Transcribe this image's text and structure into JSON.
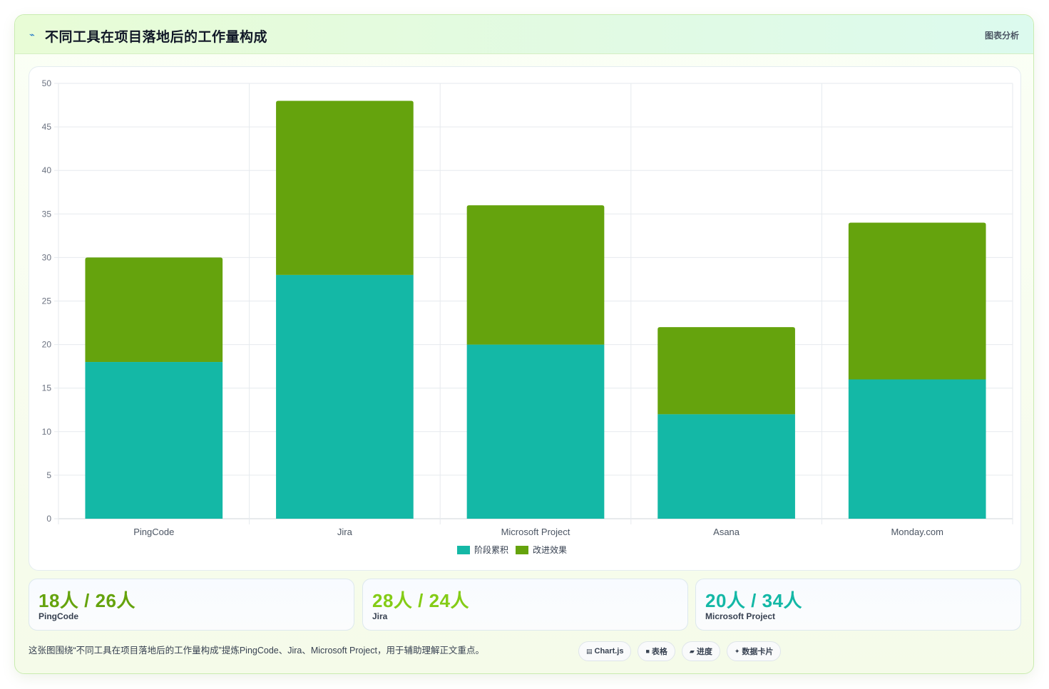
{
  "header": {
    "title": "不同工具在项目落地后的工作量构成",
    "link_label": "图表分析"
  },
  "colors": {
    "series_a": "#14b8a6",
    "series_b": "#65a30d"
  },
  "chart_data": {
    "type": "bar",
    "stacked": true,
    "categories": [
      "PingCode",
      "Jira",
      "Microsoft Project",
      "Asana",
      "Monday.com"
    ],
    "series": [
      {
        "name": "阶段累积",
        "values": [
          18,
          28,
          20,
          12,
          16
        ]
      },
      {
        "name": "改进效果",
        "values": [
          12,
          20,
          16,
          10,
          18
        ]
      }
    ],
    "ylim": [
      0,
      50
    ],
    "yticks": [
      0,
      5,
      10,
      15,
      20,
      25,
      30,
      35,
      40,
      45,
      50
    ],
    "grid": true,
    "legend": "bottom"
  },
  "stats": [
    {
      "value": "18人 / 26人",
      "label": "PingCode",
      "color": "#65a30d"
    },
    {
      "value": "28人 / 24人",
      "label": "Jira",
      "color": "#84cc16"
    },
    {
      "value": "20人 / 34人",
      "label": "Microsoft Project",
      "color": "#14b8a6"
    }
  ],
  "footnote": "这张图围绕“不同工具在项目落地后的工作量构成”提炼PingCode、Jira、Microsoft Project，用于辅助理解正文重点。",
  "tags": [
    {
      "icon": "chart-icon",
      "glyph": "▤",
      "label": "Chart.js"
    },
    {
      "icon": "table-icon",
      "glyph": "■",
      "label": "表格"
    },
    {
      "icon": "progress-icon",
      "glyph": "▰",
      "label": "进度"
    },
    {
      "icon": "sparkle-icon",
      "glyph": "✦",
      "label": "数据卡片"
    }
  ]
}
